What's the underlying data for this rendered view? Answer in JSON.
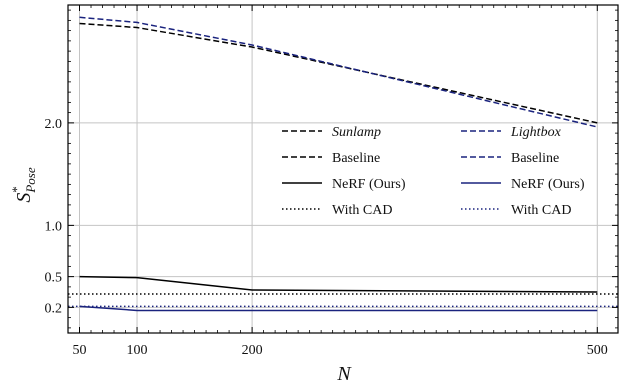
{
  "chart_data": {
    "type": "line",
    "xlabel": "N",
    "ylabel": {
      "base": "S",
      "sub": "Pose",
      "sup": "*"
    },
    "xlim": [
      40,
      518
    ],
    "ylim": [
      -0.05,
      3.15
    ],
    "xticks": [
      50,
      100,
      200,
      500
    ],
    "yticks": [
      0.2,
      0.5,
      1.0,
      2.0
    ],
    "ytick_labels": [
      "0.2",
      "0.5",
      "1.0",
      "2.0"
    ],
    "grid": true,
    "legend": {
      "placement": "upper-right",
      "columns": [
        {
          "header": "Sunlamp",
          "color": "#000000"
        },
        {
          "header": "Lightbox",
          "color": "#1a237e"
        }
      ],
      "rows": [
        {
          "label": "Baseline",
          "style": "dashed"
        },
        {
          "label": "NeRF (Ours)",
          "style": "solid"
        },
        {
          "label": "With CAD",
          "style": "dotted"
        }
      ]
    },
    "series": [
      {
        "dataset": "Sunlamp",
        "kind": "Baseline",
        "color": "#000000",
        "style": "dashed",
        "x": [
          50,
          100,
          200,
          500
        ],
        "y": [
          2.97,
          2.93,
          2.74,
          2.0
        ]
      },
      {
        "dataset": "Lightbox",
        "kind": "Baseline",
        "color": "#1a237e",
        "style": "dashed",
        "x": [
          50,
          100,
          200,
          500
        ],
        "y": [
          3.03,
          2.98,
          2.76,
          1.96
        ]
      },
      {
        "dataset": "Sunlamp",
        "kind": "NeRF (Ours)",
        "color": "#000000",
        "style": "solid",
        "x": [
          50,
          100,
          200,
          500
        ],
        "y": [
          0.5,
          0.49,
          0.37,
          0.35
        ]
      },
      {
        "dataset": "Lightbox",
        "kind": "NeRF (Ours)",
        "color": "#1a237e",
        "style": "solid",
        "x": [
          50,
          100,
          200,
          500
        ],
        "y": [
          0.21,
          0.17,
          0.17,
          0.17
        ]
      },
      {
        "dataset": "Sunlamp",
        "kind": "With CAD",
        "color": "#000000",
        "style": "dotted",
        "y_constant": 0.33
      },
      {
        "dataset": "Lightbox",
        "kind": "With CAD",
        "color": "#1a237e",
        "style": "dotted",
        "y_constant": 0.21
      }
    ]
  }
}
